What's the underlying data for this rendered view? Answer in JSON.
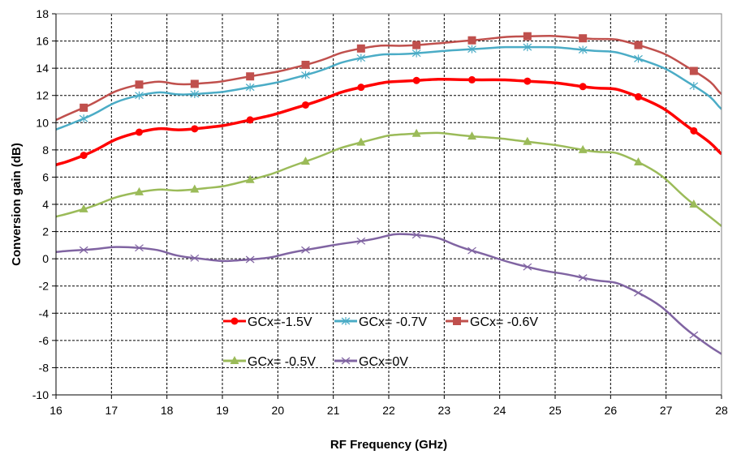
{
  "chart_data": {
    "type": "line",
    "title": "",
    "xlabel": "RF Frequency (GHz)",
    "ylabel": "Conversion gain  (dB)",
    "xlim": [
      16,
      28
    ],
    "ylim": [
      -10,
      18
    ],
    "xticks": [
      16,
      17,
      18,
      19,
      20,
      21,
      22,
      23,
      24,
      25,
      26,
      27,
      28
    ],
    "yticks": [
      -10,
      -8,
      -6,
      -4,
      -2,
      0,
      2,
      4,
      6,
      8,
      10,
      12,
      14,
      16,
      18
    ],
    "grid": true,
    "legend_placement": "inside-bottom-center",
    "x": [
      16,
      16.5,
      17.5,
      18.5,
      19.5,
      20.5,
      21.5,
      22.5,
      23.5,
      24.5,
      25.5,
      26.5,
      27.5,
      28
    ],
    "series": [
      {
        "name": "GCx=-1.5V",
        "color": "#ff0000",
        "marker": "circle",
        "values": [
          6.9,
          7.6,
          9.3,
          9.55,
          10.2,
          11.3,
          12.6,
          13.1,
          13.15,
          13.05,
          12.65,
          11.9,
          9.4,
          7.7
        ]
      },
      {
        "name": "GCx= -0.7V",
        "color": "#4bacc6",
        "marker": "asterisk",
        "values": [
          9.5,
          10.3,
          12.0,
          12.1,
          12.6,
          13.5,
          14.75,
          15.1,
          15.4,
          15.55,
          15.35,
          14.7,
          12.7,
          11.0
        ]
      },
      {
        "name": "GCx= -0.6V",
        "color": "#c0504d",
        "marker": "square",
        "values": [
          10.2,
          11.1,
          12.8,
          12.85,
          13.4,
          14.25,
          15.45,
          15.7,
          16.05,
          16.35,
          16.2,
          15.7,
          13.8,
          12.1
        ]
      },
      {
        "name": "GCx= -0.5V",
        "color": "#9bbb59",
        "marker": "triangle",
        "values": [
          3.1,
          3.65,
          4.9,
          5.1,
          5.8,
          7.15,
          8.55,
          9.2,
          9.0,
          8.6,
          8.0,
          7.1,
          4.0,
          2.4
        ]
      },
      {
        "name": "GCx=0V",
        "color": "#8064a2",
        "marker": "x",
        "values": [
          0.5,
          0.65,
          0.8,
          0.05,
          -0.05,
          0.65,
          1.3,
          1.75,
          0.6,
          -0.6,
          -1.4,
          -2.5,
          -5.6,
          -7.0
        ]
      }
    ]
  }
}
